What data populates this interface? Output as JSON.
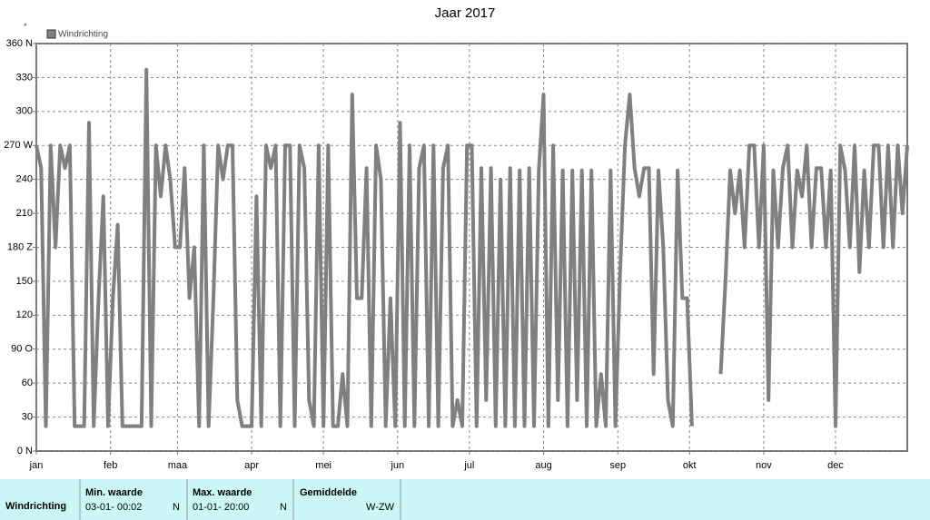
{
  "chart_data": {
    "type": "line",
    "title": "Jaar 2017",
    "y_unit": "°",
    "x": [
      1,
      3,
      5,
      7,
      9,
      11,
      13,
      15,
      17,
      19,
      21,
      23,
      25,
      27,
      29,
      31,
      33,
      35,
      37,
      39,
      41,
      43,
      45,
      47,
      49,
      51,
      53,
      55,
      57,
      59,
      61,
      63,
      65,
      67,
      69,
      71,
      73,
      75,
      77,
      79,
      81,
      83,
      85,
      87,
      89,
      91,
      93,
      95,
      97,
      99,
      101,
      103,
      105,
      107,
      109,
      111,
      113,
      115,
      117,
      119,
      121,
      123,
      125,
      127,
      129,
      131,
      133,
      135,
      137,
      139,
      141,
      143,
      145,
      147,
      149,
      151,
      153,
      155,
      157,
      159,
      161,
      163,
      165,
      167,
      169,
      171,
      173,
      175,
      177,
      179,
      181,
      183,
      185,
      187,
      189,
      191,
      193,
      195,
      197,
      199,
      201,
      203,
      205,
      207,
      209,
      211,
      213,
      215,
      217,
      219,
      221,
      223,
      225,
      227,
      229,
      231,
      233,
      235,
      237,
      239,
      241,
      243,
      245,
      247,
      249,
      251,
      253,
      255,
      257,
      259,
      261,
      263,
      265,
      267,
      269,
      271,
      273,
      275,
      277,
      279,
      281,
      283,
      285,
      287,
      289,
      291,
      293,
      295,
      297,
      299,
      301,
      303,
      305,
      307,
      309,
      311,
      313,
      315,
      317,
      319,
      321,
      323,
      325,
      327,
      329,
      331,
      333,
      335,
      337,
      339,
      341,
      343,
      345,
      347,
      349,
      351,
      353,
      355,
      357,
      359,
      361,
      363,
      365
    ],
    "series": [
      {
        "name": "Windrichting",
        "color": "#808080",
        "values": [
          270,
          250,
          22,
          270,
          180,
          270,
          250,
          270,
          22,
          22,
          22,
          290,
          22,
          135,
          225,
          22,
          135,
          200,
          22,
          22,
          22,
          22,
          22,
          337,
          22,
          270,
          225,
          270,
          240,
          180,
          180,
          250,
          135,
          180,
          22,
          270,
          22,
          135,
          270,
          240,
          270,
          270,
          45,
          22,
          22,
          22,
          225,
          22,
          270,
          250,
          270,
          22,
          270,
          270,
          22,
          270,
          250,
          45,
          22,
          270,
          22,
          270,
          22,
          22,
          68,
          22,
          315,
          135,
          135,
          250,
          22,
          270,
          240,
          22,
          135,
          22,
          290,
          22,
          270,
          22,
          250,
          270,
          22,
          270,
          22,
          250,
          270,
          22,
          45,
          22,
          270,
          270,
          22,
          250,
          45,
          250,
          22,
          240,
          22,
          250,
          22,
          248,
          22,
          250,
          22,
          248,
          315,
          22,
          270,
          45,
          248,
          22,
          248,
          45,
          248,
          22,
          248,
          22,
          68,
          22,
          248,
          22,
          158,
          270,
          315,
          250,
          225,
          250,
          250,
          68,
          248,
          180,
          45,
          22,
          248,
          135,
          135,
          22,
          null,
          null,
          null,
          null,
          null,
          68,
          150,
          248,
          210,
          248,
          180,
          270,
          270,
          180,
          270,
          45,
          248,
          180,
          250,
          270,
          180,
          248,
          225,
          270,
          180,
          250,
          250,
          180,
          248,
          22,
          270,
          248,
          180,
          270,
          158,
          248,
          180,
          270,
          270,
          180,
          270,
          180,
          270,
          210,
          270
        ]
      }
    ],
    "xlim": [
      1,
      365
    ],
    "xticks": [
      {
        "value": 1,
        "label": "jan"
      },
      {
        "value": 32,
        "label": "feb"
      },
      {
        "value": 60,
        "label": "maa"
      },
      {
        "value": 91,
        "label": "apr"
      },
      {
        "value": 121,
        "label": "mei"
      },
      {
        "value": 152,
        "label": "jun"
      },
      {
        "value": 182,
        "label": "jul"
      },
      {
        "value": 213,
        "label": "aug"
      },
      {
        "value": 244,
        "label": "sep"
      },
      {
        "value": 274,
        "label": "okt"
      },
      {
        "value": 305,
        "label": "nov"
      },
      {
        "value": 335,
        "label": "dec"
      }
    ],
    "ylim": [
      0,
      360
    ],
    "yticks": [
      {
        "value": 0,
        "label": "0 N"
      },
      30,
      60,
      {
        "value": 90,
        "label": "90 O"
      },
      120,
      150,
      {
        "value": 180,
        "label": "180 Z"
      },
      210,
      240,
      {
        "value": 270,
        "label": "270 W"
      },
      300,
      330,
      {
        "value": 360,
        "label": "360 N"
      }
    ],
    "grid": true
  },
  "summary": {
    "headers": [
      "Min. waarde",
      "Max. waarde",
      "Gemiddelde"
    ],
    "row": {
      "label": "Windrichting",
      "min_time": "03-01-  00:02",
      "min_dir": "N",
      "max_time": "01-01-  20:00",
      "max_dir": "N",
      "mean": "W-ZW"
    }
  }
}
